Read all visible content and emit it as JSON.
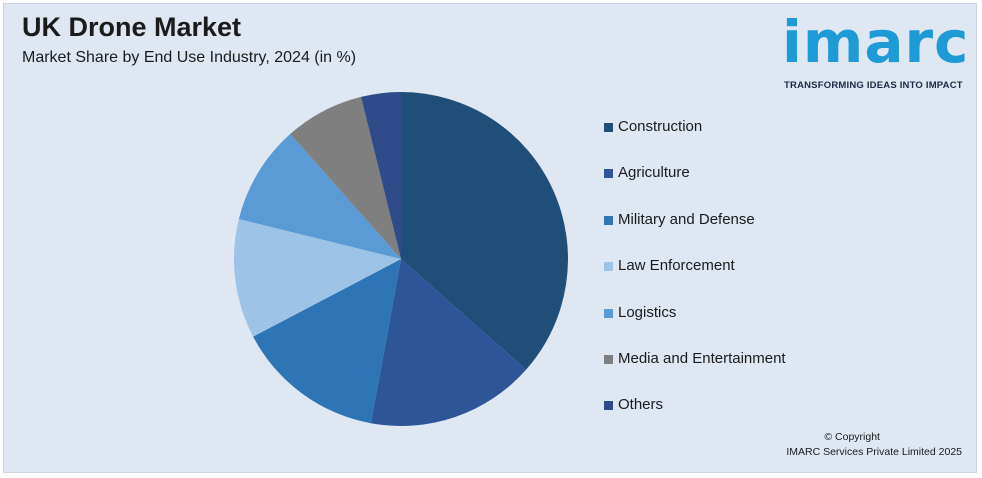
{
  "chart_data": {
    "type": "pie",
    "title": "UK Drone Market",
    "subtitle": "Market Share by End Use Industry, 2024 (in %)",
    "legend_position": "right",
    "slices": [
      {
        "label": "Construction",
        "value": 38,
        "color": "#1f4e79"
      },
      {
        "label": "Agriculture",
        "value": 17,
        "color": "#2e5597"
      },
      {
        "label": "Military and Defense",
        "value": 15,
        "color": "#2e75b6"
      },
      {
        "label": "Law Enforcement",
        "value": 12,
        "color": "#9dc3e6"
      },
      {
        "label": "Logistics",
        "value": 10,
        "color": "#5b9bd5"
      },
      {
        "label": "Media and Entertainment",
        "value": 8,
        "color": "#7f7f7f"
      },
      {
        "label": "Others",
        "value": 4,
        "color": "#2f4b8a"
      }
    ]
  },
  "brand": {
    "name": "imarc",
    "tagline": "TRANSFORMING IDEAS INTO IMPACT",
    "color": "#1e9ad6"
  },
  "footer": {
    "copyright_line1": "© Copyright",
    "copyright_line2": "IMARC Services Private Limited 2025"
  }
}
